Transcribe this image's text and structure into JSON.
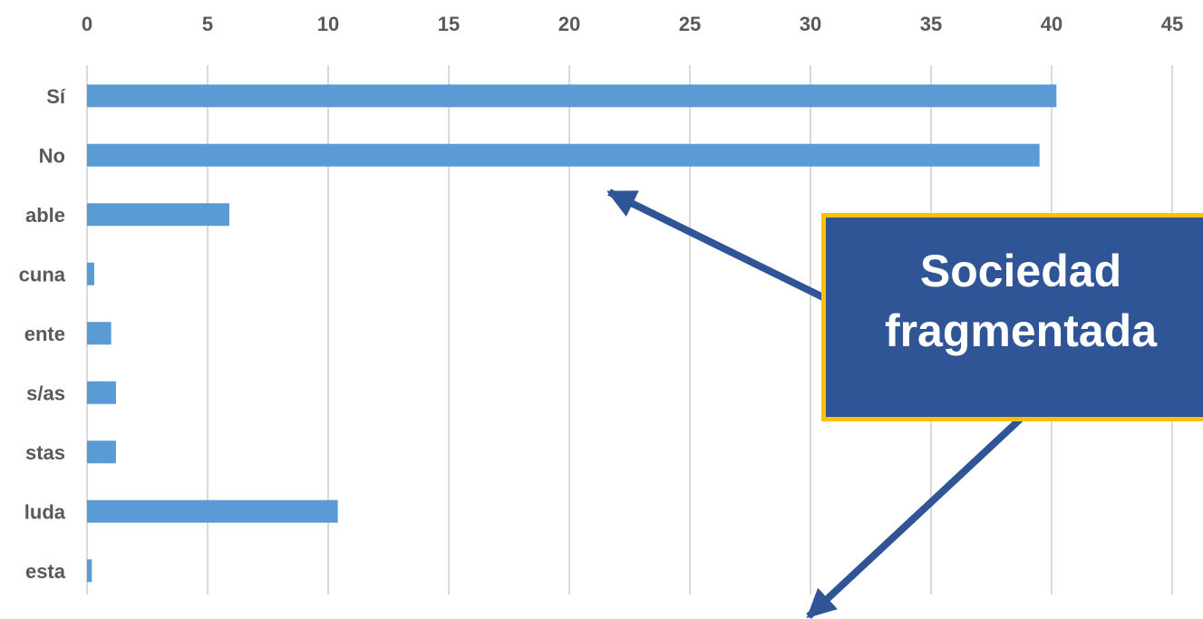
{
  "chart_data": {
    "type": "bar",
    "orientation": "horizontal",
    "categories": [
      "Sí",
      "No",
      "able",
      "cuna",
      "ente",
      "s/as",
      "stas",
      "luda",
      "esta"
    ],
    "values": [
      40.2,
      39.5,
      5.9,
      0.3,
      1.0,
      1.2,
      1.2,
      10.4,
      0.2
    ],
    "xlim": [
      0,
      45
    ],
    "xticks": [
      "0",
      "5",
      "10",
      "15",
      "20",
      "25",
      "30",
      "35",
      "40",
      "45"
    ],
    "x_axis_position": "top",
    "grid": true,
    "bar_color": "#5b9bd5",
    "grid_color": "#d9d9d9",
    "title": "",
    "xlabel": "",
    "ylabel": ""
  },
  "callout": {
    "line1": "Sociedad",
    "line2": "fragmentada",
    "fill_color": "#2f5597",
    "border_color": "#ffc000",
    "arrow_color": "#2f5597"
  }
}
